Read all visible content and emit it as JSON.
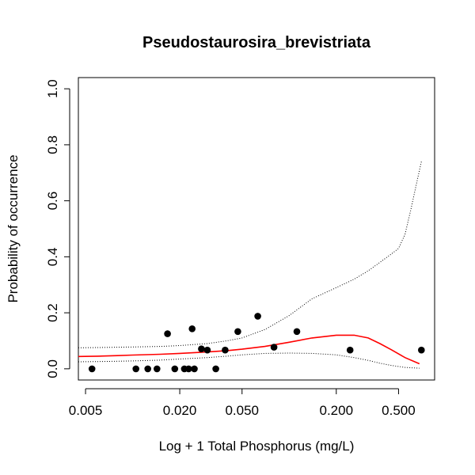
{
  "chart_data": {
    "type": "scatter",
    "title": "Pseudostaurosira_brevistriata",
    "xlabel": "Log + 1 Total Phosphorus (mg/L)",
    "ylabel": "Probability of occurrence",
    "xscale": "log",
    "xlim": [
      0.0045,
      0.85
    ],
    "ylim": [
      -0.04,
      1.04
    ],
    "xticks": [
      0.005,
      0.02,
      0.05,
      0.2,
      0.5
    ],
    "xtick_labels": [
      "0.005",
      "0.020",
      "0.050",
      "0.200",
      "0.500"
    ],
    "yticks": [
      0.0,
      0.2,
      0.4,
      0.6,
      0.8,
      1.0
    ],
    "ytick_labels": [
      "0.0",
      "0.2",
      "0.4",
      "0.6",
      "0.8",
      "1.0"
    ],
    "grid": false,
    "colors": {
      "points": "#000000",
      "fit": "#ff0000",
      "ci": "#000000"
    },
    "points": [
      {
        "x": 0.0055,
        "y": 0.0
      },
      {
        "x": 0.0105,
        "y": 0.0
      },
      {
        "x": 0.0125,
        "y": 0.0
      },
      {
        "x": 0.0143,
        "y": 0.0
      },
      {
        "x": 0.0167,
        "y": 0.125
      },
      {
        "x": 0.0186,
        "y": 0.0
      },
      {
        "x": 0.0214,
        "y": 0.0
      },
      {
        "x": 0.0228,
        "y": 0.0
      },
      {
        "x": 0.024,
        "y": 0.143
      },
      {
        "x": 0.0248,
        "y": 0.0
      },
      {
        "x": 0.0275,
        "y": 0.071
      },
      {
        "x": 0.03,
        "y": 0.067
      },
      {
        "x": 0.034,
        "y": 0.0
      },
      {
        "x": 0.039,
        "y": 0.067
      },
      {
        "x": 0.047,
        "y": 0.133
      },
      {
        "x": 0.063,
        "y": 0.188
      },
      {
        "x": 0.08,
        "y": 0.077
      },
      {
        "x": 0.112,
        "y": 0.133
      },
      {
        "x": 0.245,
        "y": 0.067
      },
      {
        "x": 0.7,
        "y": 0.067
      }
    ],
    "fit": {
      "x": [
        0.0045,
        0.006,
        0.008,
        0.01,
        0.015,
        0.02,
        0.03,
        0.04,
        0.05,
        0.07,
        0.1,
        0.14,
        0.2,
        0.26,
        0.32,
        0.38,
        0.45,
        0.55,
        0.68
      ],
      "y": [
        0.044,
        0.045,
        0.047,
        0.049,
        0.052,
        0.055,
        0.06,
        0.065,
        0.07,
        0.08,
        0.095,
        0.11,
        0.12,
        0.12,
        0.11,
        0.09,
        0.068,
        0.04,
        0.018
      ]
    },
    "upper_ci": {
      "x": [
        0.0045,
        0.006,
        0.008,
        0.01,
        0.015,
        0.02,
        0.03,
        0.04,
        0.05,
        0.07,
        0.1,
        0.14,
        0.2,
        0.26,
        0.32,
        0.38,
        0.45,
        0.5,
        0.55,
        0.6,
        0.65,
        0.7
      ],
      "y": [
        0.075,
        0.076,
        0.077,
        0.078,
        0.08,
        0.083,
        0.09,
        0.1,
        0.11,
        0.14,
        0.19,
        0.25,
        0.29,
        0.32,
        0.35,
        0.38,
        0.41,
        0.43,
        0.48,
        0.57,
        0.66,
        0.74
      ]
    },
    "lower_ci": {
      "x": [
        0.0045,
        0.006,
        0.008,
        0.01,
        0.015,
        0.02,
        0.03,
        0.04,
        0.05,
        0.07,
        0.1,
        0.14,
        0.2,
        0.26,
        0.32,
        0.38,
        0.45,
        0.55,
        0.68
      ],
      "y": [
        0.025,
        0.026,
        0.027,
        0.028,
        0.031,
        0.035,
        0.04,
        0.045,
        0.05,
        0.055,
        0.056,
        0.055,
        0.05,
        0.04,
        0.03,
        0.02,
        0.012,
        0.005,
        0.002
      ]
    }
  }
}
